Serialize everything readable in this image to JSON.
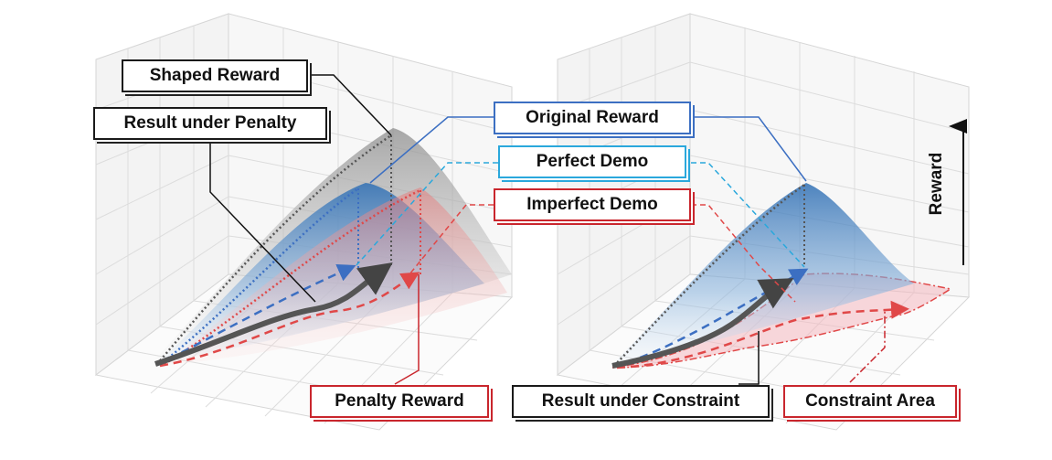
{
  "labels": {
    "shaped_reward": "Shaped Reward",
    "result_under_penalty": "Result under Penalty",
    "original_reward": "Original Reward",
    "perfect_demo": "Perfect Demo",
    "imperfect_demo": "Imperfect Demo",
    "penalty_reward": "Penalty Reward",
    "result_under_constraint": "Result under Constraint",
    "constraint_area": "Constraint Area"
  },
  "axis": {
    "reward": "Reward"
  },
  "colors": {
    "black": "#1a1a1a",
    "blue": "#3c6fc2",
    "cyan": "#2aa8dc",
    "red": "#c9262d",
    "shaped_surface": "#9a9a9a",
    "original_surface": "#3d7fc0",
    "penalty_surface": "#e98a8a",
    "constraint_area": "#f4b8bf"
  }
}
